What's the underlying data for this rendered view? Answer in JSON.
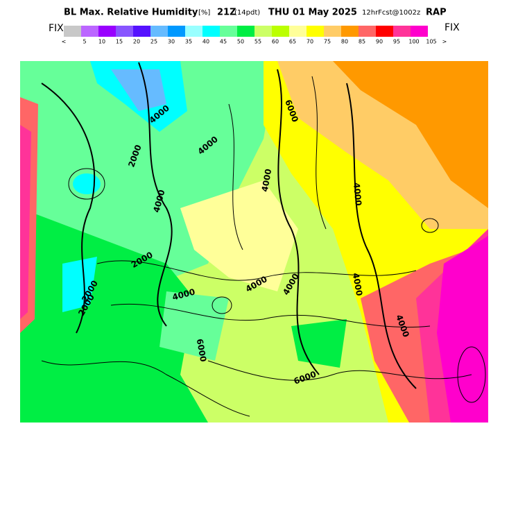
{
  "header": {
    "title": "BL Max. Relative Humidity",
    "units": "[%]",
    "time": "21Z",
    "local_time": "(14pdt)",
    "date": "THU 01 May 2025",
    "forecast": "12hrFcst@1002z",
    "model": "RAP"
  },
  "colorbar": {
    "left_label": "FIX",
    "right_label": "FIX",
    "colors": [
      "#c8c8c8",
      "#bb66ff",
      "#9900ff",
      "#8855ff",
      "#5511ff",
      "#66bbff",
      "#0099ff",
      "#99ffff",
      "#00ffff",
      "#66ff99",
      "#00ee44",
      "#ccff66",
      "#bbff00",
      "#ffff99",
      "#ffff00",
      "#ffcc66",
      "#ff9900",
      "#ff6666",
      "#ff0000",
      "#ff3399",
      "#ff00cc"
    ],
    "labels": [
      "<",
      "5",
      "10",
      "15",
      "20",
      "25",
      "30",
      "35",
      "40",
      "45",
      "50",
      "55",
      "60",
      "65",
      "70",
      "75",
      "80",
      "85",
      "90",
      "95",
      "100",
      "105",
      ">"
    ]
  },
  "contour_labels": [
    "4000",
    "2000",
    "4000",
    "4000",
    "2000",
    "2000",
    "2000",
    "4000",
    "4000",
    "4000",
    "4000",
    "6000",
    "6000",
    "4000",
    "4000",
    "6000",
    "4000"
  ]
}
